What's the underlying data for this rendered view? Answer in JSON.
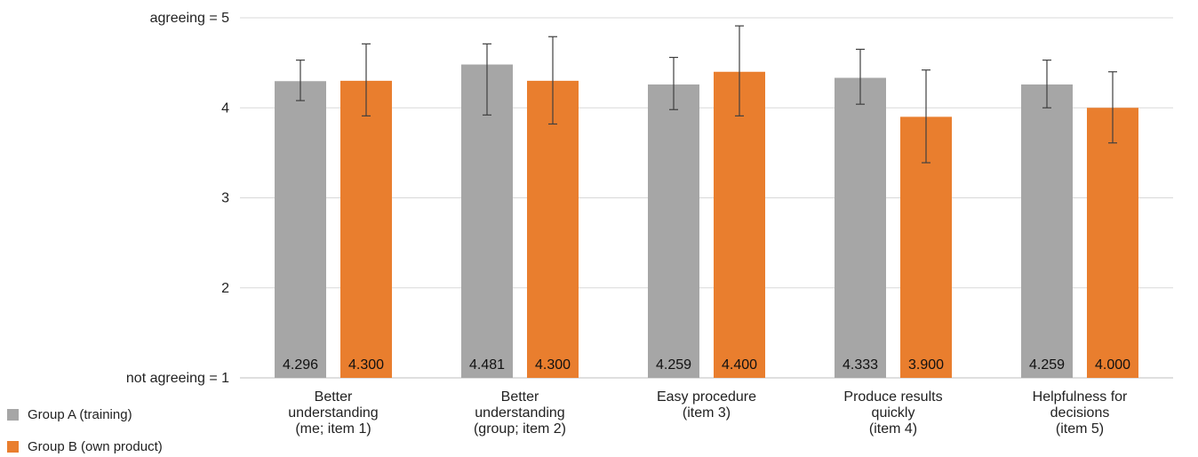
{
  "chart_data": {
    "type": "bar",
    "title": "",
    "xlabel": "",
    "ylabel": "",
    "ylim": [
      1,
      5
    ],
    "y_ticks": [
      {
        "value": 1,
        "label": "not agreeing = 1"
      },
      {
        "value": 2,
        "label": "2"
      },
      {
        "value": 3,
        "label": "3"
      },
      {
        "value": 4,
        "label": "4"
      },
      {
        "value": 5,
        "label": "agreeing = 5"
      }
    ],
    "categories": [
      [
        "Better",
        "understanding",
        "(me; item 1)"
      ],
      [
        "Better",
        "understanding",
        "(group; item 2)"
      ],
      [
        "Easy procedure",
        "(item 3)"
      ],
      [
        "Produce results",
        "quickly",
        "(item 4)"
      ],
      [
        "Helpfulness for",
        "decisions",
        "(item 5)"
      ]
    ],
    "series": [
      {
        "name": "Group A (training)",
        "color": "#a6a6a6",
        "values": [
          4.296,
          4.481,
          4.259,
          4.333,
          4.259
        ],
        "labels": [
          "4.296",
          "4.481",
          "4.259",
          "4.333",
          "4.259"
        ],
        "error_low": [
          4.08,
          3.92,
          3.98,
          4.04,
          4.0
        ],
        "error_high": [
          4.53,
          4.71,
          4.56,
          4.65,
          4.53
        ]
      },
      {
        "name": "Group B (own product)",
        "color": "#e97e2e",
        "values": [
          4.3,
          4.3,
          4.4,
          3.9,
          4.0
        ],
        "labels": [
          "4.300",
          "4.300",
          "4.400",
          "3.900",
          "4.000"
        ],
        "error_low": [
          3.91,
          3.82,
          3.91,
          3.39,
          3.61
        ],
        "error_high": [
          4.71,
          4.79,
          4.91,
          4.42,
          4.4
        ]
      }
    ],
    "grid": true,
    "legend": "bottom-left"
  }
}
